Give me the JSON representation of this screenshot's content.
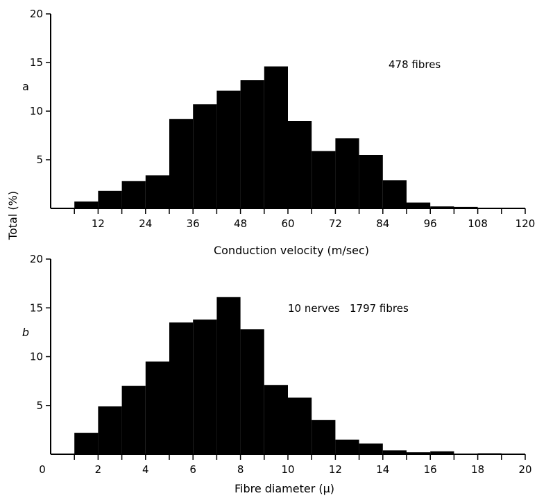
{
  "shared_ylabel": "Total (%)",
  "chart_data": [
    {
      "type": "bar",
      "panel_label": "a",
      "annotation": "478 fibres",
      "xlabel": "Conduction velocity (m/sec)",
      "ylabel": "Total (%)",
      "xlim": [
        0,
        120
      ],
      "ylim": [
        0,
        20
      ],
      "x_ticks": [
        12,
        24,
        36,
        48,
        60,
        72,
        84,
        96,
        108,
        120
      ],
      "y_ticks": [
        5,
        10,
        15,
        20
      ],
      "bin_width": 6,
      "bins": [
        {
          "x0": 6,
          "x1": 12,
          "value": 0.7
        },
        {
          "x0": 12,
          "x1": 18,
          "value": 1.8
        },
        {
          "x0": 18,
          "x1": 24,
          "value": 2.8
        },
        {
          "x0": 24,
          "x1": 30,
          "value": 3.4
        },
        {
          "x0": 30,
          "x1": 36,
          "value": 9.2
        },
        {
          "x0": 36,
          "x1": 42,
          "value": 10.7
        },
        {
          "x0": 42,
          "x1": 48,
          "value": 12.1
        },
        {
          "x0": 48,
          "x1": 54,
          "value": 13.2
        },
        {
          "x0": 54,
          "x1": 60,
          "value": 14.6
        },
        {
          "x0": 60,
          "x1": 66,
          "value": 9.0
        },
        {
          "x0": 66,
          "x1": 72,
          "value": 5.9
        },
        {
          "x0": 72,
          "x1": 78,
          "value": 7.2
        },
        {
          "x0": 78,
          "x1": 84,
          "value": 5.5
        },
        {
          "x0": 84,
          "x1": 90,
          "value": 2.9
        },
        {
          "x0": 90,
          "x1": 96,
          "value": 0.6
        },
        {
          "x0": 96,
          "x1": 102,
          "value": 0.2
        },
        {
          "x0": 102,
          "x1": 108,
          "value": 0.15
        }
      ]
    },
    {
      "type": "bar",
      "panel_label": "b",
      "annotation": "10 nerves   1797 fibres",
      "xlabel": "Fibre diameter (μ)",
      "ylabel": "Total (%)",
      "xlim": [
        0,
        20
      ],
      "ylim": [
        0,
        20
      ],
      "x_ticks": [
        0,
        2,
        4,
        6,
        8,
        10,
        12,
        14,
        16,
        18,
        20
      ],
      "y_ticks": [
        5,
        10,
        15,
        20
      ],
      "bin_width": 1,
      "bins": [
        {
          "x0": 1,
          "x1": 2,
          "value": 2.2
        },
        {
          "x0": 2,
          "x1": 3,
          "value": 4.9
        },
        {
          "x0": 3,
          "x1": 4,
          "value": 7.0
        },
        {
          "x0": 4,
          "x1": 5,
          "value": 9.5
        },
        {
          "x0": 5,
          "x1": 6,
          "value": 13.5
        },
        {
          "x0": 6,
          "x1": 7,
          "value": 13.8
        },
        {
          "x0": 7,
          "x1": 8,
          "value": 16.1
        },
        {
          "x0": 8,
          "x1": 9,
          "value": 12.8
        },
        {
          "x0": 9,
          "x1": 10,
          "value": 7.1
        },
        {
          "x0": 10,
          "x1": 11,
          "value": 5.8
        },
        {
          "x0": 11,
          "x1": 12,
          "value": 3.5
        },
        {
          "x0": 12,
          "x1": 13,
          "value": 1.5
        },
        {
          "x0": 13,
          "x1": 14,
          "value": 1.1
        },
        {
          "x0": 14,
          "x1": 15,
          "value": 0.4
        },
        {
          "x0": 15,
          "x1": 16,
          "value": 0.2
        },
        {
          "x0": 16,
          "x1": 17,
          "value": 0.3
        },
        {
          "x0": 17,
          "x1": 18,
          "value": 0.05
        },
        {
          "x0": 18,
          "x1": 19,
          "value": 0.1
        }
      ]
    }
  ]
}
